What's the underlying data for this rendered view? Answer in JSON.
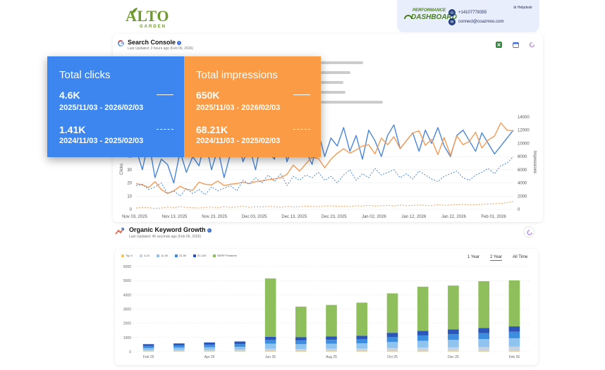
{
  "brand": {
    "name_big": "ALTO",
    "name_small": "GARDEN",
    "dashboard_top": "PERFORMANCE",
    "dashboard_bottom": "DASHBOARD"
  },
  "contact": {
    "phone": "+14107778355",
    "email": "connect@coazmoo.com",
    "helpdesk": "Helpdesk"
  },
  "search_console": {
    "title": "Search Console",
    "updated": "Last Updated: 3 hours ago (Feb 06, 2026)",
    "icons": [
      "excel-icon",
      "calendar-icon",
      "refresh-icon"
    ]
  },
  "metrics": {
    "clicks": {
      "title": "Total clicks",
      "current_value": "4.6K",
      "current_range": "2025/11/03 - 2026/02/03",
      "previous_value": "1.41K",
      "previous_range": "2024/11/03 - 2025/02/03"
    },
    "impressions": {
      "title": "Total impressions",
      "current_value": "650K",
      "current_range": "2025/11/03 - 2026/02/03",
      "previous_value": "68.21K",
      "previous_range": "2024/11/03 - 2025/02/03"
    }
  },
  "chart_data": [
    {
      "type": "line",
      "title": "Search Console",
      "xlabel": "",
      "ylabel": "Clicks",
      "y2label": "Impressions",
      "x_ticks": [
        "Nov 03, 2025",
        "Nov 13, 2025",
        "Nov 23, 2025",
        "Dec 03, 2025",
        "Dec 13, 2025",
        "Dec 23, 2025",
        "Jan 02, 2026",
        "Jan 12, 2026",
        "Jan 22, 2026",
        "Feb 01, 2026"
      ],
      "y_ticks_left": [
        "0",
        "10",
        "20",
        "30",
        "40"
      ],
      "y_ticks_right": [
        "0",
        "2000",
        "4000",
        "6000",
        "8000",
        "10000",
        "12000",
        "14000"
      ],
      "ylim": [
        0,
        70
      ],
      "y2lim": [
        0,
        14000
      ],
      "series": [
        {
          "name": "Clicks (current)",
          "color": "#4a86d8",
          "dashed": false,
          "axis": "left",
          "values": [
            46,
            30,
            52,
            24,
            38,
            34,
            20,
            44,
            28,
            40,
            33,
            52,
            30,
            46,
            24,
            42,
            58,
            36,
            48,
            30,
            54,
            44,
            38,
            62,
            36,
            50,
            60,
            44,
            34,
            58,
            40,
            54,
            48,
            62,
            44,
            56,
            38,
            60,
            52,
            40,
            56,
            64,
            46,
            52,
            58,
            44,
            60,
            50,
            62,
            48,
            40,
            56,
            60,
            52,
            44,
            58,
            50,
            42,
            48,
            54,
            60
          ]
        },
        {
          "name": "Impressions (current)",
          "color": "#f69a55",
          "dashed": false,
          "axis": "right",
          "values": [
            3900,
            3700,
            3300,
            4200,
            3000,
            2400,
            2800,
            3500,
            3000,
            2900,
            4100,
            3800,
            3700,
            4300,
            3600,
            3800,
            3900,
            4100,
            3900,
            4200,
            4300,
            4500,
            4600,
            4800,
            5300,
            6700,
            5800,
            6900,
            7900,
            7700,
            6300,
            7600,
            8500,
            9200,
            8500,
            9000,
            9600,
            9800,
            8400,
            10800,
            9800,
            11000,
            9200,
            10400,
            11600,
            11900,
            9700,
            10600,
            8300,
            10900,
            8200,
            11100,
            9800,
            10300,
            11700,
            9300,
            10500,
            11100,
            13100,
            12000,
            11900
          ]
        },
        {
          "name": "Clicks (previous)",
          "color": "#4a86d8",
          "dashed": true,
          "axis": "left",
          "values": [
            18,
            19,
            15,
            17,
            20,
            12,
            14,
            10,
            16,
            12,
            15,
            11,
            17,
            14,
            16,
            18,
            14,
            22,
            19,
            24,
            20,
            26,
            21,
            27,
            18,
            25,
            22,
            26,
            24,
            28,
            22,
            25,
            20,
            26,
            30,
            22,
            27,
            24,
            31,
            26,
            28,
            30,
            24,
            27,
            23,
            29,
            26,
            23,
            21,
            25,
            27,
            29,
            24,
            22,
            26,
            28,
            31,
            27,
            33,
            35,
            40
          ]
        },
        {
          "name": "Impressions (previous)",
          "color": "#f69a55",
          "dashed": true,
          "axis": "right",
          "values": [
            200,
            300,
            250,
            150,
            200,
            350,
            250,
            400,
            300,
            250,
            200,
            300,
            350,
            250,
            400,
            300,
            350,
            450,
            300,
            400,
            350,
            450,
            400,
            300,
            450,
            350,
            400,
            500,
            450,
            400,
            500,
            550,
            450,
            500,
            400,
            550,
            500,
            600,
            500,
            550,
            600,
            500,
            650,
            550,
            600,
            650,
            600,
            550,
            700,
            600,
            650,
            700,
            750,
            650,
            700,
            750,
            800,
            850,
            900,
            1000,
            1200
          ]
        }
      ]
    },
    {
      "type": "bar",
      "stacked": true,
      "title": "Organic Keyword Growth",
      "x_ticks": [
        "Feb 25",
        "Apr 25",
        "Jun 25",
        "Aug 25",
        "Oct 25",
        "Dec 25",
        "Feb 26"
      ],
      "categories": [
        "Feb 25",
        "Mar 25",
        "Apr 25",
        "May 25",
        "Jun 25",
        "Jul 25",
        "Aug 25",
        "Sep 25",
        "Oct 25",
        "Nov 25",
        "Dec 25",
        "Jan 26",
        "Feb 26"
      ],
      "y_ticks": [
        "0",
        "1000",
        "2000",
        "3000",
        "4000",
        "5000",
        "6000"
      ],
      "ylim": [
        0,
        6000
      ],
      "series": [
        {
          "name": "Top 3",
          "color": "#f6c760",
          "values": [
            20,
            20,
            20,
            20,
            30,
            30,
            30,
            30,
            30,
            30,
            30,
            30,
            30
          ]
        },
        {
          "name": "4-10",
          "color": "#c7d4e6",
          "values": [
            80,
            90,
            100,
            110,
            180,
            170,
            180,
            190,
            230,
            260,
            280,
            300,
            320
          ]
        },
        {
          "name": "11-30",
          "color": "#8fc4f0",
          "values": [
            150,
            170,
            190,
            210,
            350,
            330,
            350,
            370,
            420,
            480,
            520,
            560,
            600
          ]
        },
        {
          "name": "31-50",
          "color": "#3c8de0",
          "values": [
            150,
            160,
            180,
            200,
            260,
            260,
            270,
            280,
            350,
            380,
            400,
            420,
            450
          ]
        },
        {
          "name": "51-100",
          "color": "#2b55b8",
          "values": [
            130,
            140,
            160,
            180,
            230,
            230,
            240,
            250,
            300,
            320,
            340,
            360,
            380
          ]
        },
        {
          "name": "SERP Features",
          "color": "#8fbe5c",
          "values": [
            0,
            0,
            0,
            0,
            4100,
            2150,
            2220,
            2330,
            2770,
            3100,
            3080,
            3290,
            3240
          ]
        }
      ],
      "range_options": [
        "1 Year",
        "2 Year",
        "All Time"
      ],
      "range_selected": "2 Year"
    }
  ],
  "keyword_growth": {
    "title": "Organic Keyword Growth",
    "updated": "Last Updated: 46 seconds ago (Feb 06, 2026)",
    "legend": [
      "Top 3",
      "4-10",
      "11-30",
      "31-50",
      "51-100",
      "SERP Features"
    ],
    "range_options": [
      "1 Year",
      "2 Year",
      "All Time"
    ]
  }
}
